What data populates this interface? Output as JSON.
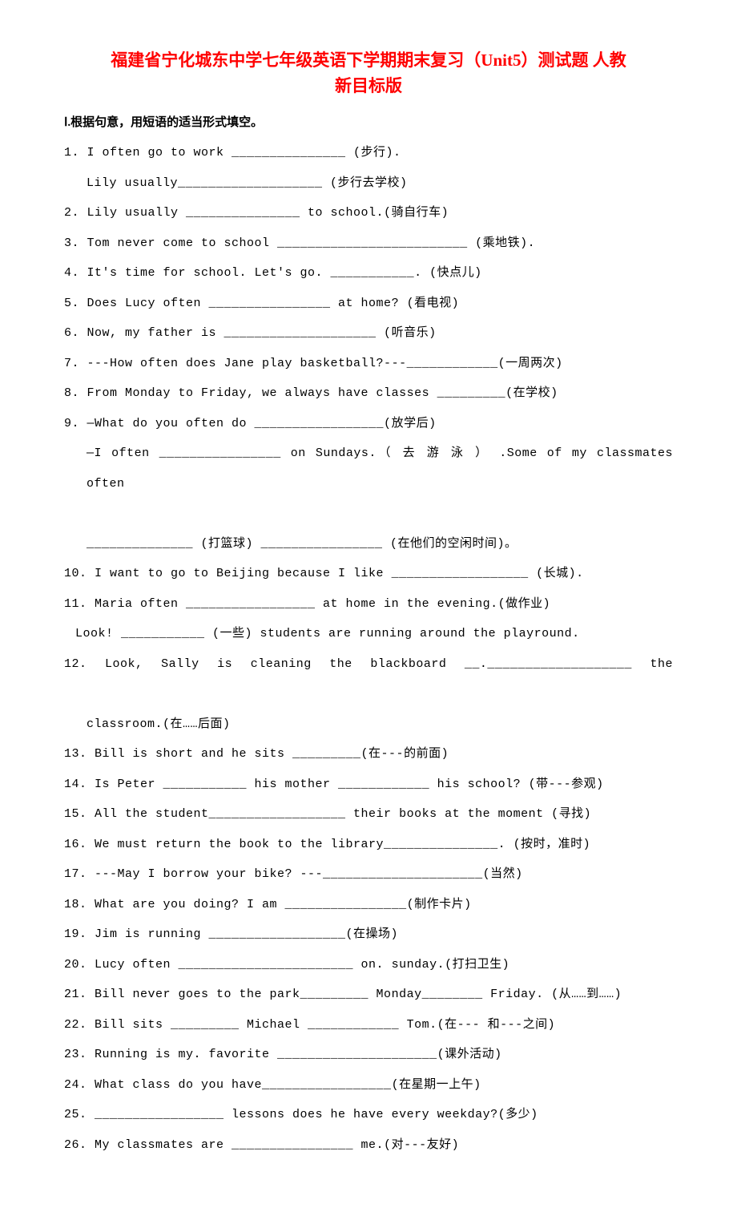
{
  "title": {
    "line1": "福建省宁化城东中学七年级英语下学期期末复习（Unit5）测试题 人教",
    "line2": "新目标版",
    "color": "#ff0000",
    "fontsize": 21
  },
  "section_header": "Ⅰ.根据句意，用短语的适当形式填空。",
  "colors": {
    "text": "#000000",
    "title": "#ff0000",
    "background": "#ffffff",
    "dot": "#6aa84f"
  },
  "fonts": {
    "body": "Courier New",
    "cjk": "SimSun",
    "body_size": 15,
    "line_height": 2.5
  },
  "items": [
    {
      "n": "1.",
      "text": "I often go to work _______________ (步行)."
    },
    {
      "n": "",
      "text": "Lily usually___________________ (步行去学校)",
      "indent": true
    },
    {
      "n": "2.",
      "text": "Lily usually _______________ to school.(骑自行车)"
    },
    {
      "n": "3.",
      "text": "Tom never come to school _________________________ (乘地铁)."
    },
    {
      "n": "4.",
      "text": "It's time for school. Let's go. ___________. (快点儿)"
    },
    {
      "n": "5.",
      "text": "Does Lucy often ________________ at home? (看电视)"
    },
    {
      "n": "6.",
      "text": "Now, my father is ____________________ (听音乐)"
    },
    {
      "n": "7.",
      "text": "---How often does Jane play basketball?---____________(一周两次)"
    },
    {
      "n": "8.",
      "text": "From Monday to Friday, we always have classes _________(在学校)"
    },
    {
      "n": "9.",
      "text": "—What do you often do _________________(放学后)"
    },
    {
      "n": "",
      "text": "—I  often  ________________  on  Sundays.（ 去 游 泳 ） .Some  of  my  classmates  often",
      "indent": true,
      "justify": true
    },
    {
      "n": "",
      "text": "______________ (打篮球) ________________ (在他们的空闲时间)。",
      "indent": true
    },
    {
      "n": "10.",
      "text": "I want to go to Beijing because I like __________________ (长城)."
    },
    {
      "n": "11.",
      "text": " Maria often _________________ at home in the evening.(做作业)"
    },
    {
      "n": "",
      "text": "Look! ___________ (一些) students are running around the playround.",
      "indent": true,
      "half": true
    },
    {
      "n": "12.",
      "text": "  Look,  Sally  is  cleaning  the  blackboard   __.___________________  the",
      "justify": true
    },
    {
      "n": "",
      "text": "classroom.(在……后面)",
      "indent": true
    },
    {
      "n": "13.",
      "text": " Bill is short and he sits _________(在---的前面)"
    },
    {
      "n": "14.",
      "text": " Is Peter ___________ his mother ____________ his school? (带---参观)"
    },
    {
      "n": "15.",
      "text": " All the student__________________ their books at the moment (寻找)"
    },
    {
      "n": "16.",
      "text": " We must return the book to the library_______________. (按时，准时)"
    },
    {
      "n": "17.",
      "text": "---May I borrow your bike? ---_____________________(当然)"
    },
    {
      "n": "18.",
      "text": " What are you doing? I am ________________(制作卡片)"
    },
    {
      "n": "19.",
      "text": " Jim is running __________________(在操场)"
    },
    {
      "n": "20.",
      "text": "Lucy often _______________________ on. sunday.(打扫卫生)"
    },
    {
      "n": "21.",
      "text": "Bill never goes to the park_________ Monday________ Friday. (从……到……)"
    },
    {
      "n": "22.",
      "text": " Bill sits _________ Michael ____________ Tom.(在--- 和---之间)"
    },
    {
      "n": "23.",
      "text": " Running is my. favorite _____________________(课外活动)"
    },
    {
      "n": "24.",
      "text": " What class do you have_________________(在星期一上午)"
    },
    {
      "n": "25.",
      "text": "_________________ lessons does he have every weekday?(多少)"
    },
    {
      "n": "26.",
      "text": " My classmates are ________________ me.(对---友好)"
    }
  ]
}
